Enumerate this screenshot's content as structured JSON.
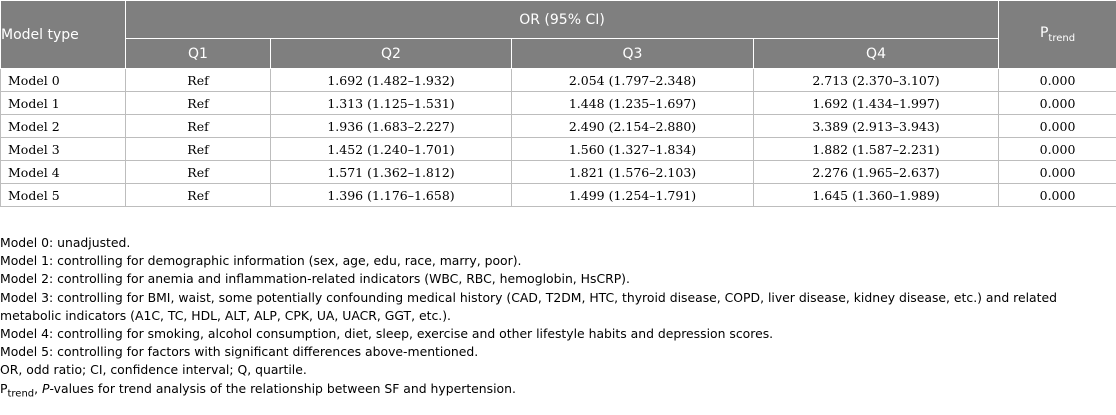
{
  "header": {
    "model_type": "Model type",
    "or_group": "OR (95% CI)",
    "ptrend_main": "P",
    "ptrend_sub": "trend",
    "quartiles": [
      "Q1",
      "Q2",
      "Q3",
      "Q4"
    ]
  },
  "rows": [
    {
      "model": "Model 0",
      "q1": "Ref",
      "q2": "1.692 (1.482–1.932)",
      "q3": "2.054 (1.797–2.348)",
      "q4": "2.713 (2.370–3.107)",
      "p": "0.000"
    },
    {
      "model": "Model 1",
      "q1": "Ref",
      "q2": "1.313 (1.125–1.531)",
      "q3": "1.448 (1.235–1.697)",
      "q4": "1.692 (1.434–1.997)",
      "p": "0.000"
    },
    {
      "model": "Model 2",
      "q1": "Ref",
      "q2": "1.936 (1.683–2.227)",
      "q3": "2.490 (2.154–2.880)",
      "q4": "3.389 (2.913–3.943)",
      "p": "0.000"
    },
    {
      "model": "Model 3",
      "q1": "Ref",
      "q2": "1.452 (1.240–1.701)",
      "q3": "1.560 (1.327–1.834)",
      "q4": "1.882 (1.587–2.231)",
      "p": "0.000"
    },
    {
      "model": "Model 4",
      "q1": "Ref",
      "q2": "1.571 (1.362–1.812)",
      "q3": "1.821 (1.576–2.103)",
      "q4": "2.276 (1.965–2.637)",
      "p": "0.000"
    },
    {
      "model": "Model 5",
      "q1": "Ref",
      "q2": "1.396 (1.176–1.658)",
      "q3": "1.499 (1.254–1.791)",
      "q4": "1.645 (1.360–1.989)",
      "p": "0.000"
    }
  ],
  "notes": {
    "n0": "Model 0: unadjusted.",
    "n1": "Model 1: controlling for demographic information (sex, age, edu, race, marry, poor).",
    "n2": "Model 2: controlling for anemia and inflammation-related indicators (WBC, RBC, hemoglobin, HsCRP).",
    "n3a": "Model 3: controlling for BMI, waist, some potentially confounding medical history (CAD, T2DM, HTC, thyroid disease, COPD, liver disease, kidney disease, etc.) and related",
    "n3b": "metabolic indicators (A1C, TC, HDL, ALT, ALP, CPK, UA, UACR, GGT, etc.).",
    "n4": "Model 4: controlling for smoking, alcohol consumption, diet, sleep, exercise and other lifestyle habits and depression scores.",
    "n5": "Model 5: controlling for factors with significant differences above-mentioned.",
    "n6": "OR, odd ratio; CI, confidence interval; Q, quartile.",
    "n7_main": "P",
    "n7_sub": "trend",
    "n7_sep": ", ",
    "n7_italic": "P",
    "n7_rest": "-values for trend analysis of the relationship between SF and hypertension."
  }
}
